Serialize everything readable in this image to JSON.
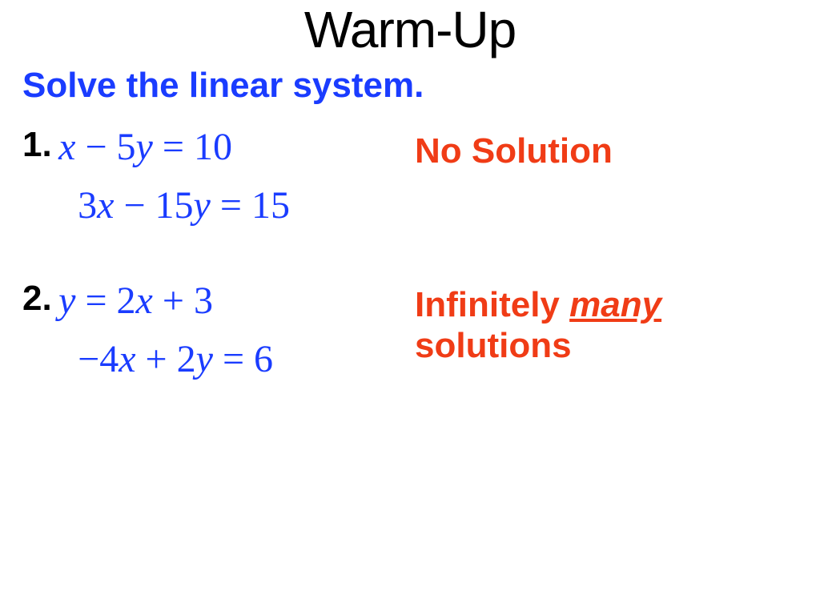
{
  "colors": {
    "blue": "#1a3cff",
    "red": "#f03c16",
    "black": "#000000",
    "background": "#ffffff"
  },
  "fonts": {
    "title_family": "Arial",
    "body_family": "Arial",
    "math_family": "Times New Roman",
    "title_size_pt": 48,
    "instruction_size_pt": 33,
    "math_size_pt": 36,
    "answer_size_pt": 33
  },
  "title": "Warm-Up",
  "instruction": "Solve the linear system.",
  "problems": [
    {
      "number": "1.",
      "eq1_plain": "x − 5y = 10",
      "eq2_plain": "3x − 15y = 15",
      "eq1": {
        "a": "x",
        "op1": "−",
        "b": "5",
        "c": "y",
        "eq": "=",
        "rhs": "10"
      },
      "eq2": {
        "a": "3",
        "b": "x",
        "op1": "−",
        "c": "15",
        "d": "y",
        "eq": "=",
        "rhs": "15"
      },
      "answer_pre": "No Solution",
      "answer_u": "",
      "answer_post": ""
    },
    {
      "number": "2.",
      "eq1_plain": "y = 2x + 3",
      "eq2_plain": "−4x + 2y = 6",
      "eq1": {
        "a": "y",
        "eq": "=",
        "b": "2",
        "c": "x",
        "op1": "+",
        "rhs": "3"
      },
      "eq2": {
        "neg": "−",
        "a": "4",
        "b": "x",
        "op1": "+",
        "c": "2",
        "d": "y",
        "eq": "=",
        "rhs": "6"
      },
      "answer_pre": "Infinitely ",
      "answer_u": "many",
      "answer_post": " solutions"
    }
  ]
}
